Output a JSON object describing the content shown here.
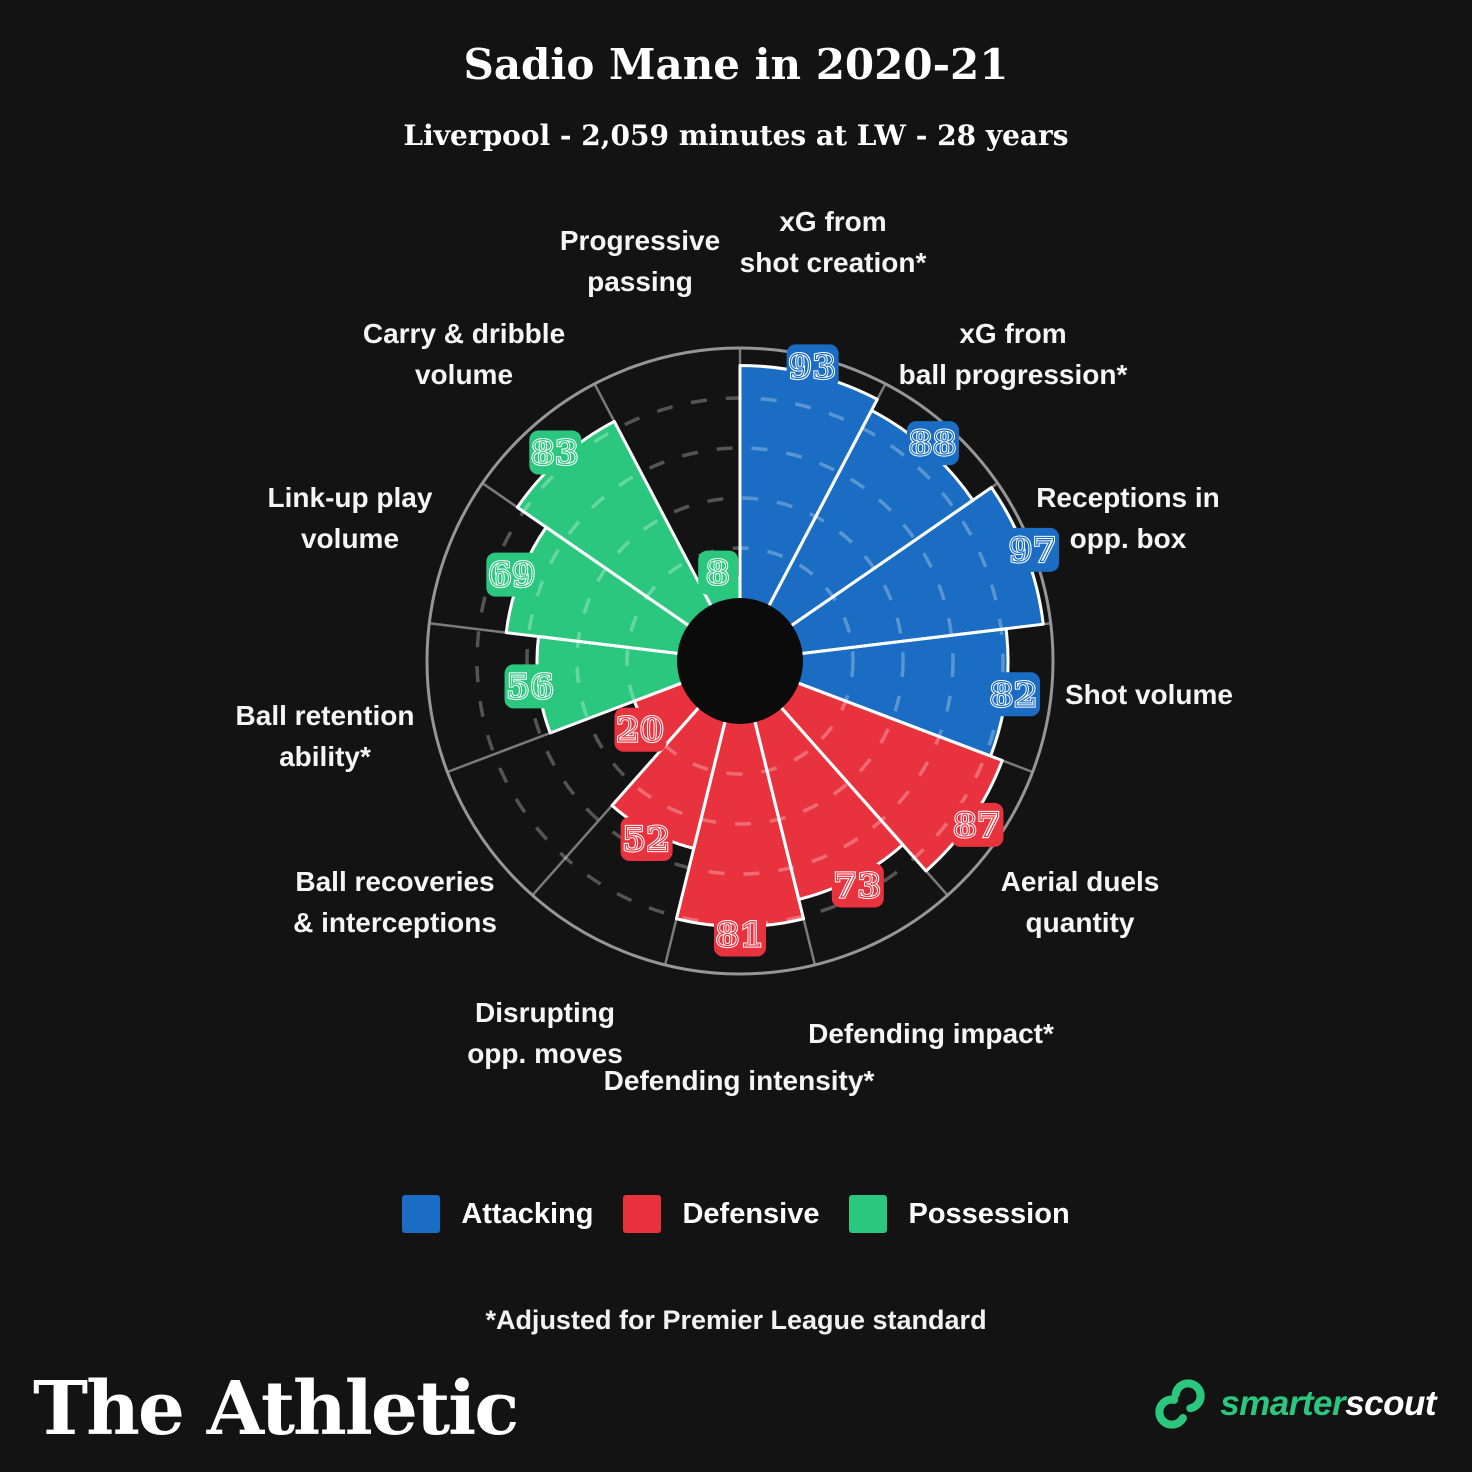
{
  "header": {
    "title": "Sadio Mane in 2020-21",
    "subtitle": "Liverpool - 2,059 minutes at LW - 28 years"
  },
  "chart_data": {
    "type": "polar_bar",
    "title": "Sadio Mane in 2020-21",
    "scale": {
      "min": 0,
      "max": 100
    },
    "gridlines": [
      20,
      40,
      60,
      80
    ],
    "direction": "clockwise-from-top",
    "grid_style": "dashed",
    "groups": [
      {
        "name": "Attacking",
        "color": "#1A6DC2"
      },
      {
        "name": "Defensive",
        "color": "#E8333F"
      },
      {
        "name": "Possession",
        "color": "#2CC77F"
      }
    ],
    "segments": [
      {
        "label": "xG from shot creation*",
        "lines": [
          "xG from",
          "shot creation*"
        ],
        "value": 93,
        "group": "Attacking"
      },
      {
        "label": "xG from ball progression*",
        "lines": [
          "xG from",
          "ball progression*"
        ],
        "value": 88,
        "group": "Attacking"
      },
      {
        "label": "Receptions in opp. box",
        "lines": [
          "Receptions in",
          "opp. box"
        ],
        "value": 97,
        "group": "Attacking"
      },
      {
        "label": "Shot volume",
        "lines": [
          "Shot volume"
        ],
        "value": 82,
        "group": "Attacking"
      },
      {
        "label": "Aerial duels quantity",
        "lines": [
          "Aerial duels",
          "quantity"
        ],
        "value": 87,
        "group": "Defensive"
      },
      {
        "label": "Defending impact*",
        "lines": [
          "Defending impact*"
        ],
        "value": 73,
        "group": "Defensive"
      },
      {
        "label": "Defending intensity*",
        "lines": [
          "Defending intensity*"
        ],
        "value": 81,
        "group": "Defensive"
      },
      {
        "label": "Disrupting opp. moves",
        "lines": [
          "Disrupting",
          "opp. moves"
        ],
        "value": 52,
        "group": "Defensive"
      },
      {
        "label": "Ball recoveries & interceptions",
        "lines": [
          "Ball recoveries",
          "& interceptions"
        ],
        "value": 20,
        "group": "Defensive"
      },
      {
        "label": "Ball retention ability*",
        "lines": [
          "Ball retention",
          "ability*"
        ],
        "value": 56,
        "group": "Possession"
      },
      {
        "label": "Link-up play volume",
        "lines": [
          "Link-up play",
          "volume"
        ],
        "value": 69,
        "group": "Possession"
      },
      {
        "label": "Carry & dribble volume",
        "lines": [
          "Carry & dribble",
          "volume"
        ],
        "value": 83,
        "group": "Possession"
      },
      {
        "label": "Progressive passing",
        "lines": [
          "Progressive",
          "passing"
        ],
        "value": 8,
        "group": "Possession"
      }
    ]
  },
  "footnote": "*Adjusted for Premier League standard",
  "branding": {
    "publisher": "The Athletic",
    "provider_prefix": "smarter",
    "provider_suffix": "scout"
  },
  "style": {
    "background": "#131313",
    "hole_color": "#0B0B0B",
    "outer_ring_color": "#969696",
    "divider_color": "#7A7A7A"
  }
}
